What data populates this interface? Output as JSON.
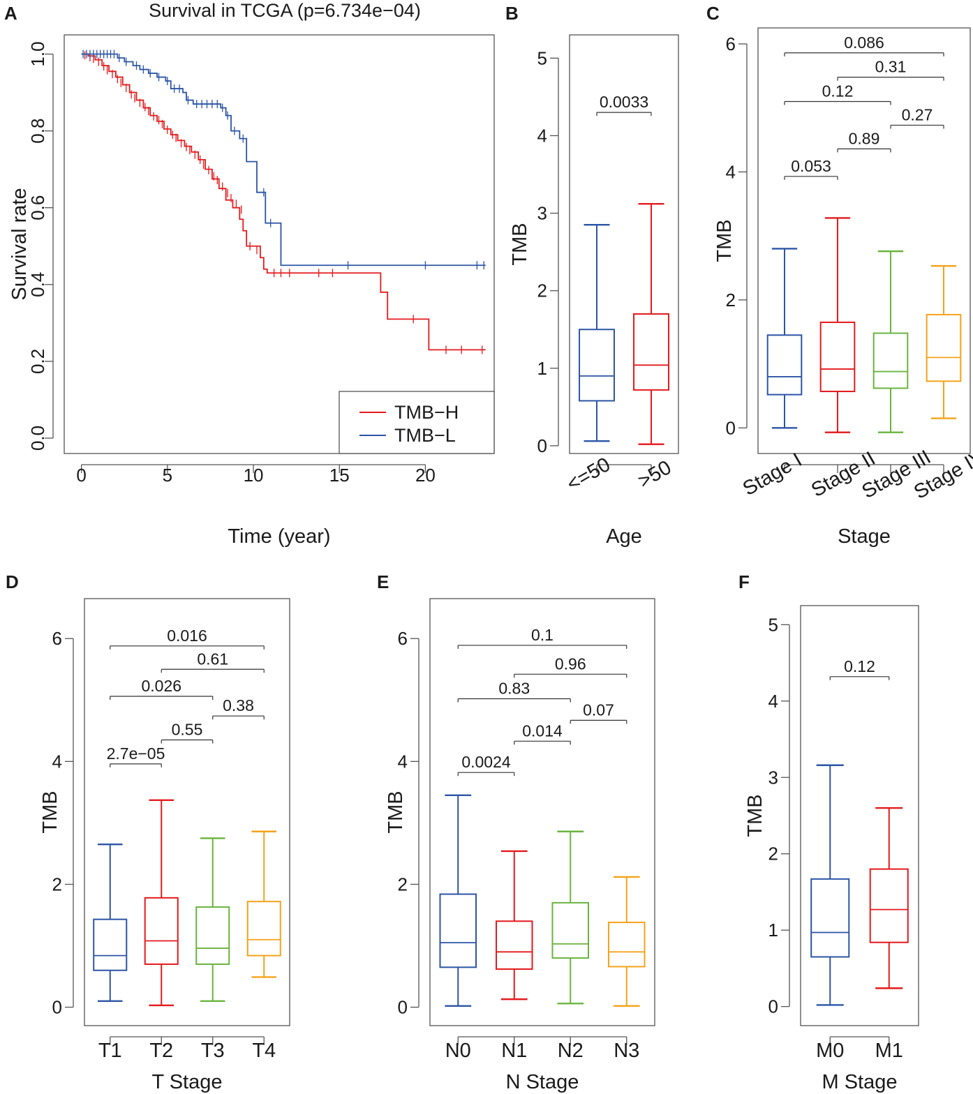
{
  "figure": {
    "background": "#ffffff",
    "axis_color": "#555555"
  },
  "chart_data": [
    {
      "id": "A",
      "panel_label": "A",
      "type": "line",
      "subtype": "kaplan-meier",
      "title": "Survival in TCGA (p=6.734e−04)",
      "xlabel": "Time (year)",
      "ylabel": "Survival rate",
      "xlim": [
        -1,
        24
      ],
      "ylim": [
        -0.04,
        1.05
      ],
      "xticks": [
        0,
        5,
        10,
        15,
        20
      ],
      "xtick_labels": [
        "0",
        "5",
        "10",
        "15",
        "20"
      ],
      "yticks": [
        0.0,
        0.2,
        0.4,
        0.6,
        0.8,
        1.0
      ],
      "ytick_labels": [
        "0.0",
        "0.2",
        "0.4",
        "0.6",
        "0.8",
        "1.0"
      ],
      "legend_position": "bottom-right",
      "series": [
        {
          "name": "TMB−H",
          "color": "#e41a1c",
          "steps": [
            [
              0,
              1.0
            ],
            [
              0.4,
              0.995
            ],
            [
              0.8,
              0.985
            ],
            [
              1.2,
              0.97
            ],
            [
              1.6,
              0.955
            ],
            [
              2.0,
              0.94
            ],
            [
              2.4,
              0.92
            ],
            [
              2.8,
              0.9
            ],
            [
              3.2,
              0.88
            ],
            [
              3.6,
              0.86
            ],
            [
              4.0,
              0.84
            ],
            [
              4.4,
              0.825
            ],
            [
              4.8,
              0.805
            ],
            [
              5.2,
              0.79
            ],
            [
              5.6,
              0.775
            ],
            [
              6.0,
              0.76
            ],
            [
              6.4,
              0.745
            ],
            [
              6.8,
              0.725
            ],
            [
              7.2,
              0.7
            ],
            [
              7.6,
              0.675
            ],
            [
              8.0,
              0.65
            ],
            [
              8.4,
              0.62
            ],
            [
              8.8,
              0.6
            ],
            [
              9.2,
              0.57
            ],
            [
              9.4,
              0.54
            ],
            [
              9.6,
              0.5
            ],
            [
              10.0,
              0.5
            ],
            [
              10.4,
              0.47
            ],
            [
              10.6,
              0.44
            ],
            [
              10.8,
              0.43
            ],
            [
              17.4,
              0.38
            ],
            [
              17.8,
              0.31
            ],
            [
              20.2,
              0.23
            ],
            [
              23.5,
              0.23
            ]
          ],
          "censor_times": [
            0.2,
            0.5,
            0.7,
            1.0,
            1.3,
            1.5,
            1.8,
            2.1,
            2.3,
            2.6,
            2.9,
            3.1,
            3.4,
            3.7,
            3.9,
            4.2,
            4.5,
            4.7,
            5.0,
            5.3,
            5.5,
            5.8,
            6.1,
            6.3,
            6.6,
            6.9,
            7.1,
            7.4,
            7.7,
            7.9,
            8.2,
            8.5,
            8.7,
            9.0,
            9.3,
            9.8,
            10.2,
            11.2,
            11.6,
            12.1,
            13.8,
            14.6,
            19.3,
            21.2,
            22.1,
            23.3
          ],
          "censor_values": [
            0.997,
            0.992,
            0.988,
            0.98,
            0.968,
            0.958,
            0.948,
            0.935,
            0.925,
            0.912,
            0.895,
            0.885,
            0.873,
            0.862,
            0.852,
            0.838,
            0.828,
            0.818,
            0.803,
            0.79,
            0.782,
            0.768,
            0.758,
            0.75,
            0.738,
            0.725,
            0.712,
            0.698,
            0.682,
            0.672,
            0.655,
            0.638,
            0.625,
            0.61,
            0.595,
            0.5,
            0.49,
            0.43,
            0.43,
            0.43,
            0.43,
            0.43,
            0.31,
            0.23,
            0.23,
            0.23
          ]
        },
        {
          "name": "TMB−L",
          "color": "#2c55a6",
          "steps": [
            [
              0,
              1.0
            ],
            [
              2.1,
              0.99
            ],
            [
              2.5,
              0.98
            ],
            [
              3.0,
              0.97
            ],
            [
              3.4,
              0.96
            ],
            [
              3.9,
              0.95
            ],
            [
              4.4,
              0.94
            ],
            [
              4.9,
              0.93
            ],
            [
              5.2,
              0.91
            ],
            [
              5.9,
              0.9
            ],
            [
              6.1,
              0.88
            ],
            [
              6.5,
              0.87
            ],
            [
              8.1,
              0.86
            ],
            [
              8.4,
              0.84
            ],
            [
              8.7,
              0.8
            ],
            [
              9.2,
              0.78
            ],
            [
              9.6,
              0.72
            ],
            [
              10.2,
              0.64
            ],
            [
              10.7,
              0.56
            ],
            [
              11.6,
              0.45
            ],
            [
              23.5,
              0.45
            ]
          ],
          "censor_times": [
            0.1,
            0.3,
            0.5,
            0.7,
            0.9,
            1.1,
            1.3,
            1.5,
            1.7,
            1.9,
            2.2,
            2.6,
            3.2,
            3.6,
            4.0,
            4.5,
            5.0,
            5.4,
            5.7,
            6.2,
            6.7,
            7.0,
            7.3,
            7.6,
            7.9,
            8.2,
            8.5,
            8.9,
            9.4,
            10.6,
            11.0,
            15.5,
            20.0,
            23.0,
            23.4
          ],
          "censor_values": [
            1.0,
            1.0,
            1.0,
            1.0,
            1.0,
            1.0,
            1.0,
            1.0,
            1.0,
            1.0,
            0.99,
            0.98,
            0.97,
            0.96,
            0.95,
            0.94,
            0.93,
            0.91,
            0.91,
            0.88,
            0.87,
            0.87,
            0.87,
            0.87,
            0.87,
            0.86,
            0.84,
            0.8,
            0.78,
            0.64,
            0.56,
            0.45,
            0.45,
            0.45,
            0.45
          ]
        }
      ]
    },
    {
      "id": "B",
      "panel_label": "B",
      "type": "box",
      "title": "",
      "xlabel": "Age",
      "ylabel": "TMB",
      "ylim": [
        -0.1,
        5.3
      ],
      "yticks": [
        0,
        1,
        2,
        3,
        4,
        5
      ],
      "ytick_labels": [
        "0",
        "1",
        "2",
        "3",
        "4",
        "5"
      ],
      "x_rotate": true,
      "categories": [
        "<=50",
        ">50"
      ],
      "colors": [
        "#2c55a6",
        "#e41a1c"
      ],
      "boxes": [
        {
          "whislo": 0.06,
          "q1": 0.58,
          "med": 0.9,
          "q3": 1.5,
          "whishi": 2.85
        },
        {
          "whislo": 0.02,
          "q1": 0.72,
          "med": 1.04,
          "q3": 1.7,
          "whishi": 3.12
        }
      ],
      "comparisons": [
        {
          "pair": [
            0,
            1
          ],
          "y": 4.3,
          "label": "0.0033"
        }
      ]
    },
    {
      "id": "C",
      "panel_label": "C",
      "type": "box",
      "title": "",
      "xlabel": "Stage",
      "ylabel": "TMB",
      "ylim": [
        -0.4,
        6.25
      ],
      "yticks": [
        0,
        2,
        4,
        6
      ],
      "ytick_labels": [
        "0",
        "2",
        "4",
        "6"
      ],
      "x_rotate": true,
      "categories": [
        "Stage I",
        "Stage II",
        "Stage III",
        "Stage IV"
      ],
      "colors": [
        "#2c55a6",
        "#e41a1c",
        "#6ab43e",
        "#f5a31a"
      ],
      "boxes": [
        {
          "whislo": 0.0,
          "q1": 0.52,
          "med": 0.8,
          "q3": 1.45,
          "whishi": 2.8
        },
        {
          "whislo": -0.07,
          "q1": 0.57,
          "med": 0.92,
          "q3": 1.65,
          "whishi": 3.28
        },
        {
          "whislo": -0.07,
          "q1": 0.62,
          "med": 0.88,
          "q3": 1.48,
          "whishi": 2.76
        },
        {
          "whislo": 0.15,
          "q1": 0.73,
          "med": 1.1,
          "q3": 1.77,
          "whishi": 2.53
        }
      ],
      "comparisons": [
        {
          "pair": [
            0,
            1
          ],
          "y": 3.93,
          "label": "0.053"
        },
        {
          "pair": [
            1,
            2
          ],
          "y": 4.36,
          "label": "0.89"
        },
        {
          "pair": [
            2,
            3
          ],
          "y": 4.73,
          "label": "0.27"
        },
        {
          "pair": [
            0,
            2
          ],
          "y": 5.1,
          "label": "0.12"
        },
        {
          "pair": [
            1,
            3
          ],
          "y": 5.48,
          "label": "0.31"
        },
        {
          "pair": [
            0,
            3
          ],
          "y": 5.86,
          "label": "0.086"
        }
      ]
    },
    {
      "id": "D",
      "panel_label": "D",
      "type": "box",
      "title": "",
      "xlabel": "T Stage",
      "ylabel": "TMB",
      "ylim": [
        -0.3,
        6.65
      ],
      "yticks": [
        0,
        2,
        4,
        6
      ],
      "ytick_labels": [
        "0",
        "2",
        "4",
        "6"
      ],
      "x_rotate": false,
      "categories": [
        "T1",
        "T2",
        "T3",
        "T4"
      ],
      "colors": [
        "#2c55a6",
        "#e41a1c",
        "#6ab43e",
        "#f5a31a"
      ],
      "boxes": [
        {
          "whislo": 0.1,
          "q1": 0.6,
          "med": 0.84,
          "q3": 1.43,
          "whishi": 2.65
        },
        {
          "whislo": 0.03,
          "q1": 0.7,
          "med": 1.08,
          "q3": 1.78,
          "whishi": 3.37
        },
        {
          "whislo": 0.1,
          "q1": 0.7,
          "med": 0.96,
          "q3": 1.63,
          "whishi": 2.75
        },
        {
          "whislo": 0.49,
          "q1": 0.84,
          "med": 1.1,
          "q3": 1.72,
          "whishi": 2.86
        }
      ],
      "comparisons": [
        {
          "pair": [
            0,
            1
          ],
          "y": 3.96,
          "label": "2.7e−05"
        },
        {
          "pair": [
            1,
            2
          ],
          "y": 4.35,
          "label": "0.55"
        },
        {
          "pair": [
            2,
            3
          ],
          "y": 4.74,
          "label": "0.38"
        },
        {
          "pair": [
            0,
            2
          ],
          "y": 5.06,
          "label": "0.026"
        },
        {
          "pair": [
            1,
            3
          ],
          "y": 5.5,
          "label": "0.61"
        },
        {
          "pair": [
            0,
            3
          ],
          "y": 5.88,
          "label": "0.016"
        }
      ]
    },
    {
      "id": "E",
      "panel_label": "E",
      "type": "box",
      "title": "",
      "xlabel": "N Stage",
      "ylabel": "TMB",
      "ylim": [
        -0.3,
        6.65
      ],
      "yticks": [
        0,
        2,
        4,
        6
      ],
      "ytick_labels": [
        "0",
        "2",
        "4",
        "6"
      ],
      "x_rotate": false,
      "categories": [
        "N0",
        "N1",
        "N2",
        "N3"
      ],
      "colors": [
        "#2c55a6",
        "#e41a1c",
        "#6ab43e",
        "#f5a31a"
      ],
      "boxes": [
        {
          "whislo": 0.02,
          "q1": 0.65,
          "med": 1.05,
          "q3": 1.84,
          "whishi": 3.45
        },
        {
          "whislo": 0.13,
          "q1": 0.62,
          "med": 0.9,
          "q3": 1.4,
          "whishi": 2.54
        },
        {
          "whislo": 0.06,
          "q1": 0.8,
          "med": 1.03,
          "q3": 1.7,
          "whishi": 2.86
        },
        {
          "whislo": 0.02,
          "q1": 0.66,
          "med": 0.9,
          "q3": 1.38,
          "whishi": 2.12
        }
      ],
      "comparisons": [
        {
          "pair": [
            0,
            1
          ],
          "y": 3.82,
          "label": "0.0024"
        },
        {
          "pair": [
            1,
            2
          ],
          "y": 4.33,
          "label": "0.014"
        },
        {
          "pair": [
            2,
            3
          ],
          "y": 4.67,
          "label": "0.07"
        },
        {
          "pair": [
            0,
            2
          ],
          "y": 5.02,
          "label": "0.83"
        },
        {
          "pair": [
            1,
            3
          ],
          "y": 5.42,
          "label": "0.96"
        },
        {
          "pair": [
            0,
            3
          ],
          "y": 5.89,
          "label": "0.1"
        }
      ]
    },
    {
      "id": "F",
      "panel_label": "F",
      "type": "box",
      "title": "",
      "xlabel": "M Stage",
      "ylabel": "TMB",
      "ylim": [
        -0.25,
        5.25
      ],
      "yticks": [
        0,
        1,
        2,
        3,
        4,
        5
      ],
      "ytick_labels": [
        "0",
        "1",
        "2",
        "3",
        "4",
        "5"
      ],
      "x_rotate": false,
      "categories": [
        "M0",
        "M1"
      ],
      "colors": [
        "#2c55a6",
        "#e41a1c"
      ],
      "boxes": [
        {
          "whislo": 0.02,
          "q1": 0.65,
          "med": 0.97,
          "q3": 1.67,
          "whishi": 3.16
        },
        {
          "whislo": 0.24,
          "q1": 0.84,
          "med": 1.27,
          "q3": 1.8,
          "whishi": 2.6
        }
      ],
      "comparisons": [
        {
          "pair": [
            0,
            1
          ],
          "y": 4.32,
          "label": "0.12"
        }
      ]
    }
  ]
}
